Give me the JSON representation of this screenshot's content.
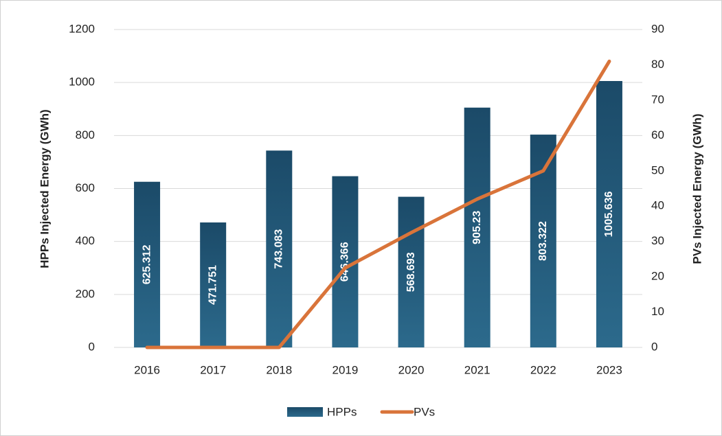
{
  "chart_data": {
    "type": "bar-line",
    "y_label": "HPPs Injected Energy (GWh)",
    "y2_label": "PVs Injected Energy (GWh)",
    "categories": [
      "2016",
      "2017",
      "2018",
      "2019",
      "2020",
      "2021",
      "2022",
      "2023"
    ],
    "series": [
      {
        "name": "HPPs",
        "type": "bar",
        "color": "#1f5373",
        "values": [
          625.312,
          471.751,
          743.083,
          646.366,
          568.693,
          905.23,
          803.322,
          1005.636
        ]
      },
      {
        "name": "PVs",
        "type": "line",
        "axis": "y2",
        "color": "#d9743a",
        "values": [
          0,
          0,
          0,
          22.5,
          32.5,
          42,
          50,
          81
        ]
      }
    ],
    "ylim": [
      0,
      1200
    ],
    "yticks": [
      0,
      200,
      400,
      600,
      800,
      1000,
      1200
    ],
    "y2lim": [
      0,
      90
    ],
    "y2ticks": [
      0,
      10,
      20,
      30,
      40,
      50,
      60,
      70,
      80,
      90
    ],
    "grid": true,
    "legend": "bottom"
  }
}
